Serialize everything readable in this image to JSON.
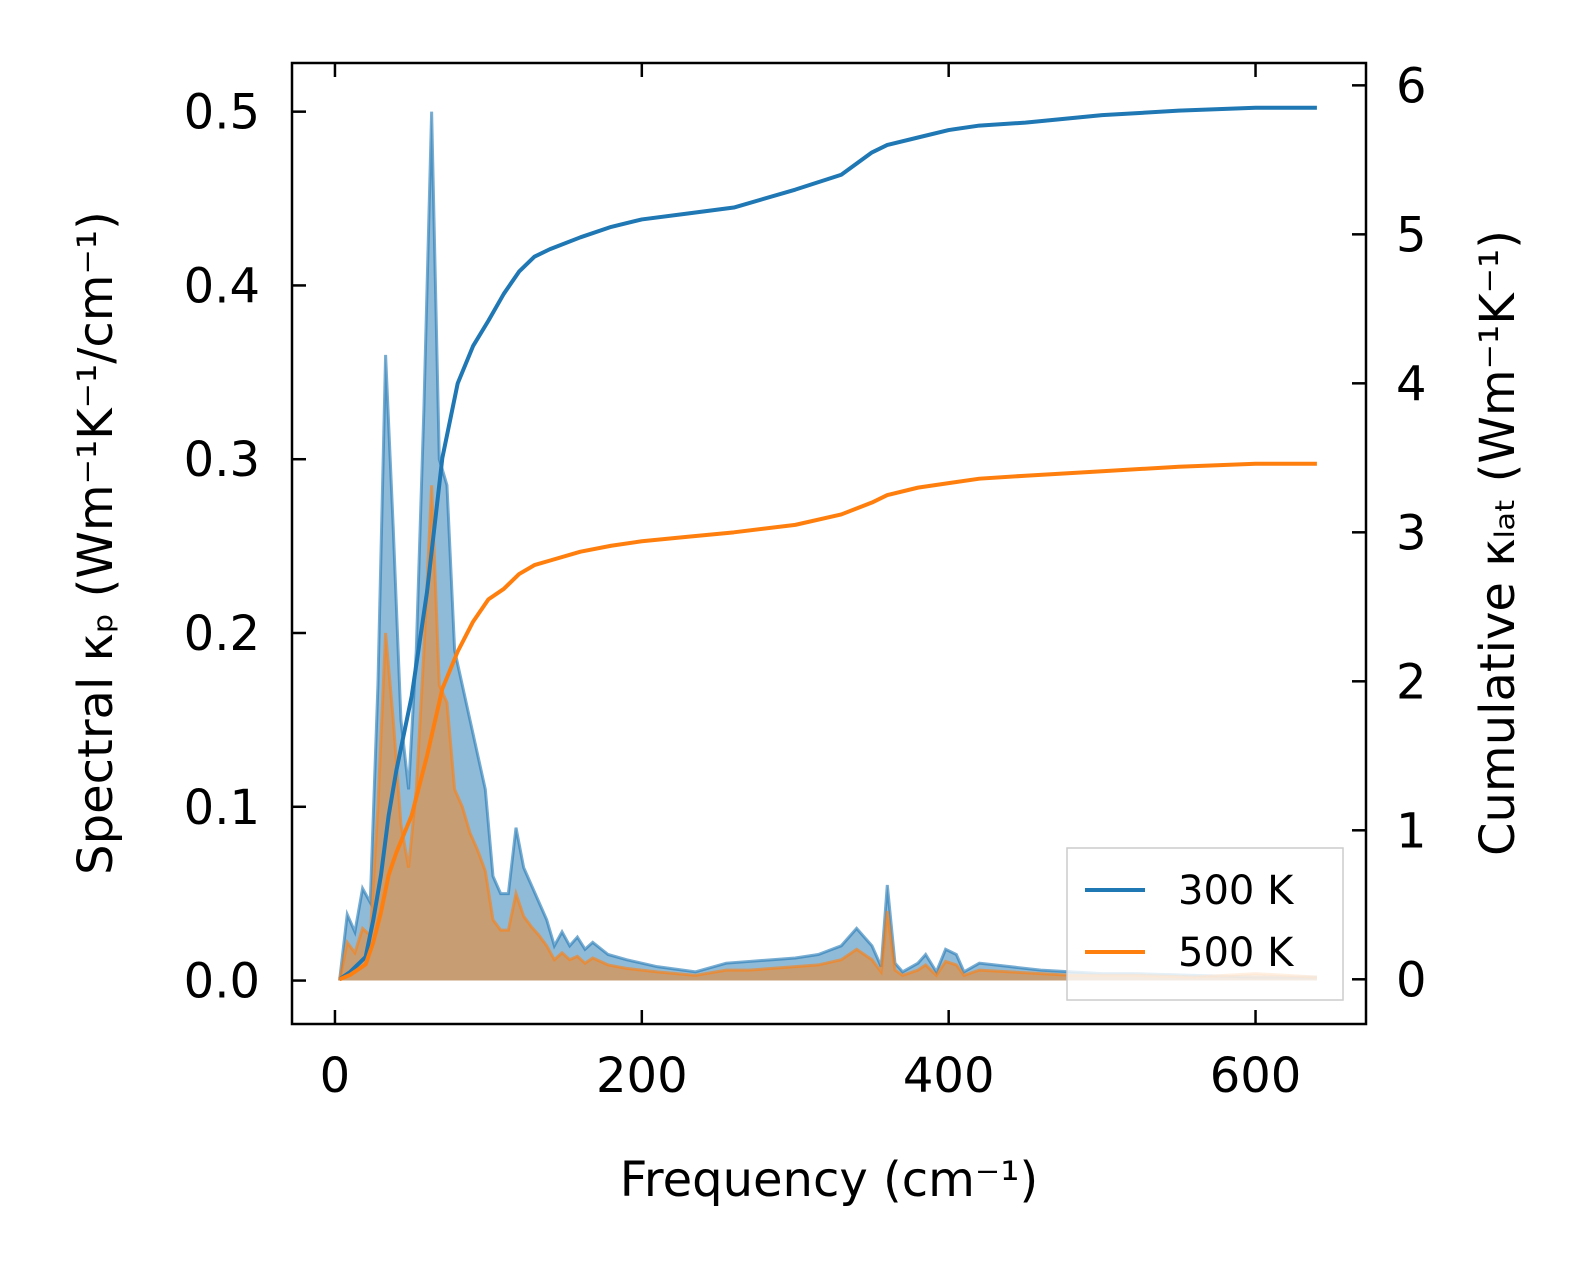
{
  "chart_data": {
    "type": "area",
    "xlabel": "Frequency (cm⁻¹)",
    "ylabel_left": "Spectral κₚ (Wm⁻¹K⁻¹/cm⁻¹)",
    "ylabel_right": "Cumulative κₗₐₜ (Wm⁻¹K⁻¹)",
    "xlim": [
      -28,
      672
    ],
    "ylim_left": [
      -0.025,
      0.528
    ],
    "ylim_right": [
      -0.3,
      6.15
    ],
    "x_ticks": [
      0,
      200,
      400,
      600
    ],
    "x_tick_labels": [
      "0",
      "200",
      "400",
      "600"
    ],
    "y_left_ticks": [
      0.0,
      0.1,
      0.2,
      0.3,
      0.4,
      0.5
    ],
    "y_left_tick_labels": [
      "0.0",
      "0.1",
      "0.2",
      "0.3",
      "0.4",
      "0.5"
    ],
    "y_right_ticks": [
      0,
      1,
      2,
      3,
      4,
      5,
      6
    ],
    "y_right_tick_labels": [
      "0",
      "1",
      "2",
      "3",
      "4",
      "5",
      "6"
    ],
    "legend_position": "lower-right",
    "legend": [
      "300 K",
      "500 K"
    ],
    "colors": {
      "series_300": "#1f77b4",
      "series_500": "#ff7f0e",
      "fill_300": "#1f77b4",
      "fill_500": "#ff7f0e",
      "fill_opacity": 0.5
    },
    "spectral": [
      {
        "name": "300 K",
        "x": [
          3,
          8,
          13,
          18,
          23,
          28,
          33,
          38,
          43,
          48,
          53,
          58,
          63,
          68,
          73,
          78,
          83,
          88,
          93,
          98,
          103,
          108,
          113,
          118,
          123,
          128,
          133,
          138,
          143,
          148,
          153,
          158,
          163,
          168,
          178,
          190,
          210,
          235,
          255,
          270,
          285,
          300,
          315,
          330,
          340,
          345,
          350,
          356,
          360,
          365,
          370,
          380,
          385,
          392,
          398,
          405,
          410,
          420,
          440,
          460,
          480,
          500,
          520,
          560,
          600,
          640
        ],
        "y": [
          0.0,
          0.038,
          0.028,
          0.053,
          0.045,
          0.17,
          0.36,
          0.26,
          0.15,
          0.11,
          0.19,
          0.33,
          0.5,
          0.3,
          0.285,
          0.19,
          0.17,
          0.15,
          0.13,
          0.11,
          0.06,
          0.05,
          0.05,
          0.088,
          0.065,
          0.055,
          0.045,
          0.035,
          0.02,
          0.028,
          0.02,
          0.025,
          0.018,
          0.022,
          0.015,
          0.012,
          0.008,
          0.005,
          0.01,
          0.011,
          0.012,
          0.013,
          0.015,
          0.02,
          0.03,
          0.025,
          0.02,
          0.008,
          0.055,
          0.01,
          0.005,
          0.01,
          0.015,
          0.005,
          0.018,
          0.015,
          0.005,
          0.01,
          0.008,
          0.006,
          0.005,
          0.004,
          0.004,
          0.003,
          0.002,
          0.002
        ]
      },
      {
        "name": "500 K",
        "x": [
          3,
          8,
          13,
          18,
          23,
          28,
          33,
          38,
          43,
          48,
          53,
          58,
          63,
          68,
          73,
          78,
          83,
          88,
          93,
          98,
          103,
          108,
          113,
          118,
          123,
          128,
          133,
          138,
          143,
          148,
          153,
          158,
          163,
          168,
          178,
          190,
          210,
          235,
          255,
          270,
          285,
          300,
          315,
          330,
          340,
          345,
          350,
          356,
          360,
          365,
          370,
          380,
          385,
          392,
          398,
          405,
          410,
          420,
          440,
          460,
          480,
          500,
          520,
          560,
          600,
          640
        ],
        "y": [
          0.0,
          0.022,
          0.016,
          0.03,
          0.026,
          0.1,
          0.2,
          0.15,
          0.09,
          0.065,
          0.11,
          0.19,
          0.285,
          0.17,
          0.16,
          0.11,
          0.1,
          0.085,
          0.075,
          0.063,
          0.035,
          0.029,
          0.029,
          0.05,
          0.037,
          0.031,
          0.026,
          0.02,
          0.012,
          0.016,
          0.012,
          0.014,
          0.01,
          0.013,
          0.009,
          0.007,
          0.005,
          0.003,
          0.006,
          0.006,
          0.007,
          0.008,
          0.009,
          0.012,
          0.018,
          0.015,
          0.012,
          0.005,
          0.04,
          0.006,
          0.003,
          0.006,
          0.009,
          0.003,
          0.011,
          0.009,
          0.003,
          0.006,
          0.005,
          0.004,
          0.003,
          0.003,
          0.003,
          0.002,
          0.004,
          0.002
        ]
      }
    ],
    "cumulative": [
      {
        "name": "300 K",
        "x": [
          3,
          10,
          20,
          25,
          30,
          35,
          40,
          50,
          60,
          70,
          80,
          90,
          100,
          110,
          120,
          130,
          140,
          160,
          180,
          200,
          230,
          260,
          300,
          330,
          350,
          360,
          380,
          400,
          420,
          450,
          500,
          550,
          600,
          640
        ],
        "y": [
          0.0,
          0.05,
          0.15,
          0.4,
          0.7,
          1.1,
          1.4,
          1.9,
          2.6,
          3.5,
          4.0,
          4.25,
          4.42,
          4.6,
          4.75,
          4.85,
          4.9,
          4.98,
          5.05,
          5.1,
          5.14,
          5.18,
          5.3,
          5.4,
          5.55,
          5.6,
          5.65,
          5.7,
          5.73,
          5.75,
          5.8,
          5.83,
          5.85,
          5.85
        ]
      },
      {
        "name": "500 K",
        "x": [
          3,
          10,
          20,
          25,
          30,
          35,
          40,
          50,
          60,
          70,
          80,
          90,
          100,
          110,
          120,
          130,
          140,
          160,
          180,
          200,
          230,
          260,
          300,
          330,
          350,
          360,
          380,
          400,
          420,
          450,
          500,
          550,
          600,
          640
        ],
        "y": [
          0.0,
          0.03,
          0.1,
          0.25,
          0.45,
          0.7,
          0.85,
          1.1,
          1.5,
          1.95,
          2.2,
          2.4,
          2.55,
          2.62,
          2.72,
          2.78,
          2.81,
          2.87,
          2.91,
          2.94,
          2.97,
          3.0,
          3.05,
          3.12,
          3.2,
          3.25,
          3.3,
          3.33,
          3.36,
          3.38,
          3.41,
          3.44,
          3.46,
          3.46
        ]
      }
    ]
  }
}
